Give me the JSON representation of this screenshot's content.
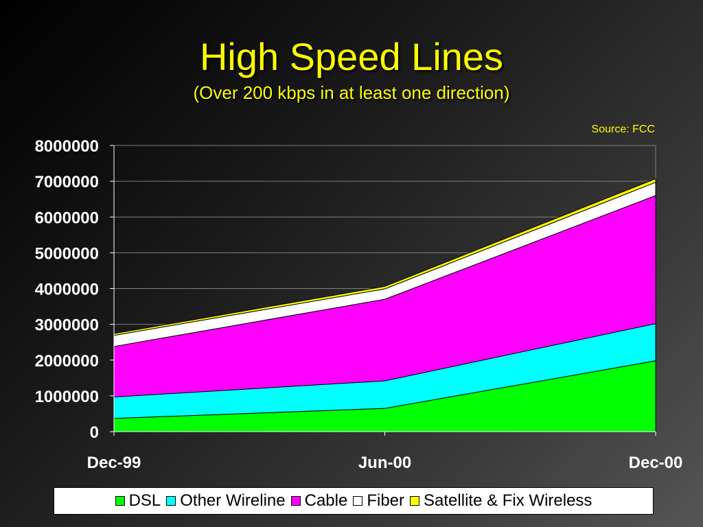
{
  "slide": {
    "title": "High Speed Lines",
    "subtitle": "(Over 200 kbps in at least one direction)",
    "source": "Source: FCC"
  },
  "chart_data": {
    "type": "area",
    "stacked": true,
    "title": "High Speed Lines",
    "subtitle": "(Over 200 kbps in at least one direction)",
    "categories": [
      "Dec-99",
      "Jun-00",
      "Dec-00"
    ],
    "ylim": [
      0,
      8000000
    ],
    "yticks": [
      0,
      1000000,
      2000000,
      3000000,
      4000000,
      5000000,
      6000000,
      7000000,
      8000000
    ],
    "grid": true,
    "legend_position": "bottom",
    "series": [
      {
        "name": "DSL",
        "color": "#00ff00",
        "values": [
          370000,
          650000,
          1980000
        ]
      },
      {
        "name": "Other Wireline",
        "color": "#00ffff",
        "values": [
          600000,
          770000,
          1040000
        ]
      },
      {
        "name": "Cable",
        "color": "#ff00ff",
        "values": [
          1410000,
          2280000,
          3580000
        ]
      },
      {
        "name": "Fiber",
        "color": "#ffffff",
        "values": [
          310000,
          290000,
          370000
        ]
      },
      {
        "name": "Satellite & Fix Wireless",
        "color": "#ffff00",
        "values": [
          50000,
          70000,
          100000
        ]
      }
    ]
  }
}
